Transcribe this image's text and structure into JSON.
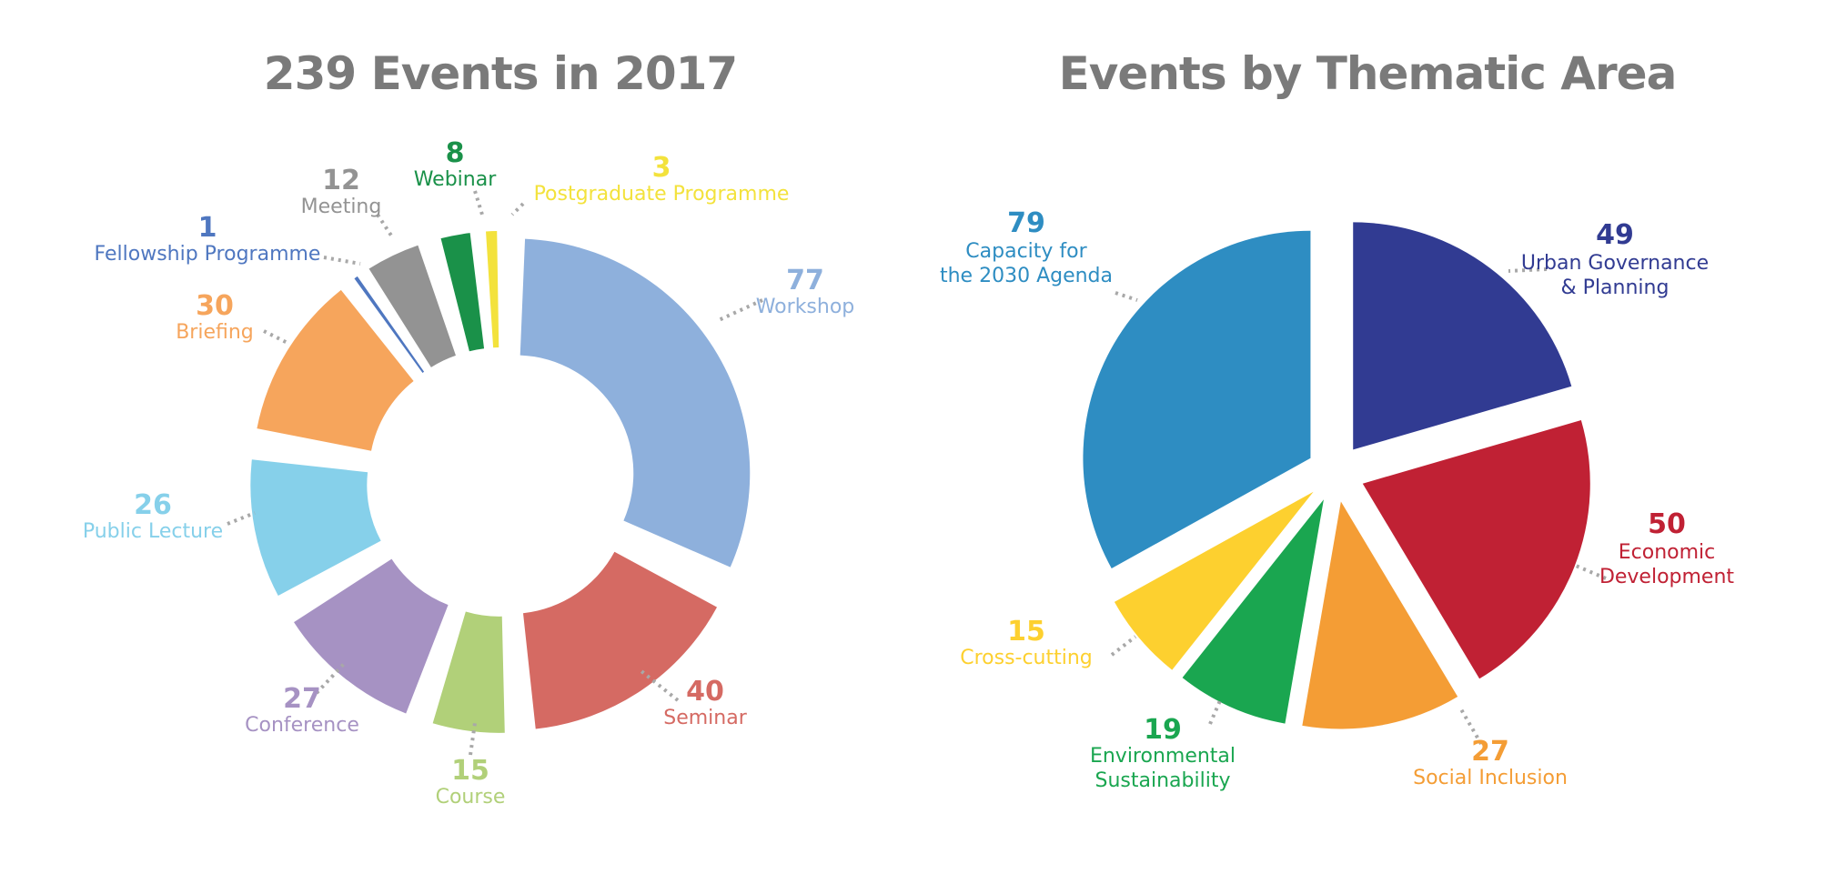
{
  "chart_data": [
    {
      "type": "pie",
      "style": "donut",
      "title": "239 Events in 2017",
      "slices": [
        {
          "label": "Workshop",
          "value": 77,
          "color": "#8eb0dc"
        },
        {
          "label": "Seminar",
          "value": 40,
          "color": "#d56a63"
        },
        {
          "label": "Course",
          "value": 15,
          "color": "#b1d079"
        },
        {
          "label": "Conference",
          "value": 27,
          "color": "#a692c3"
        },
        {
          "label": "Public Lecture",
          "value": 26,
          "color": "#86d0ea"
        },
        {
          "label": "Briefing",
          "value": 30,
          "color": "#f6a55c"
        },
        {
          "label": "Fellowship Programme",
          "value": 1,
          "color": "#4f77c0"
        },
        {
          "label": "Meeting",
          "value": 12,
          "color": "#939393"
        },
        {
          "label": "Webinar",
          "value": 8,
          "color": "#1a9149"
        },
        {
          "label": "Postgraduate Programme",
          "value": 3,
          "color": "#f3e23c"
        }
      ]
    },
    {
      "type": "pie",
      "style": "exploded",
      "title": "Events by Thematic Area",
      "slices": [
        {
          "label": "Urban Governance & Planning",
          "lines": [
            "Urban Governance",
            "& Planning"
          ],
          "value": 49,
          "color": "#313b92"
        },
        {
          "label": "Economic Development",
          "lines": [
            "Economic",
            "Development"
          ],
          "value": 50,
          "color": "#c02134"
        },
        {
          "label": "Social Inclusion",
          "lines": [
            "Social Inclusion"
          ],
          "value": 27,
          "color": "#f49d35"
        },
        {
          "label": "Environmental Sustainability",
          "lines": [
            "Environmental",
            "Sustainability"
          ],
          "value": 19,
          "color": "#1aa650"
        },
        {
          "label": "Cross-cutting",
          "lines": [
            "Cross-cutting"
          ],
          "value": 15,
          "color": "#fdd02f"
        },
        {
          "label": "Capacity for the 2030 Agenda",
          "lines": [
            "Capacity for",
            "the 2030 Agenda"
          ],
          "value": 79,
          "color": "#2e8dc2"
        }
      ]
    }
  ]
}
